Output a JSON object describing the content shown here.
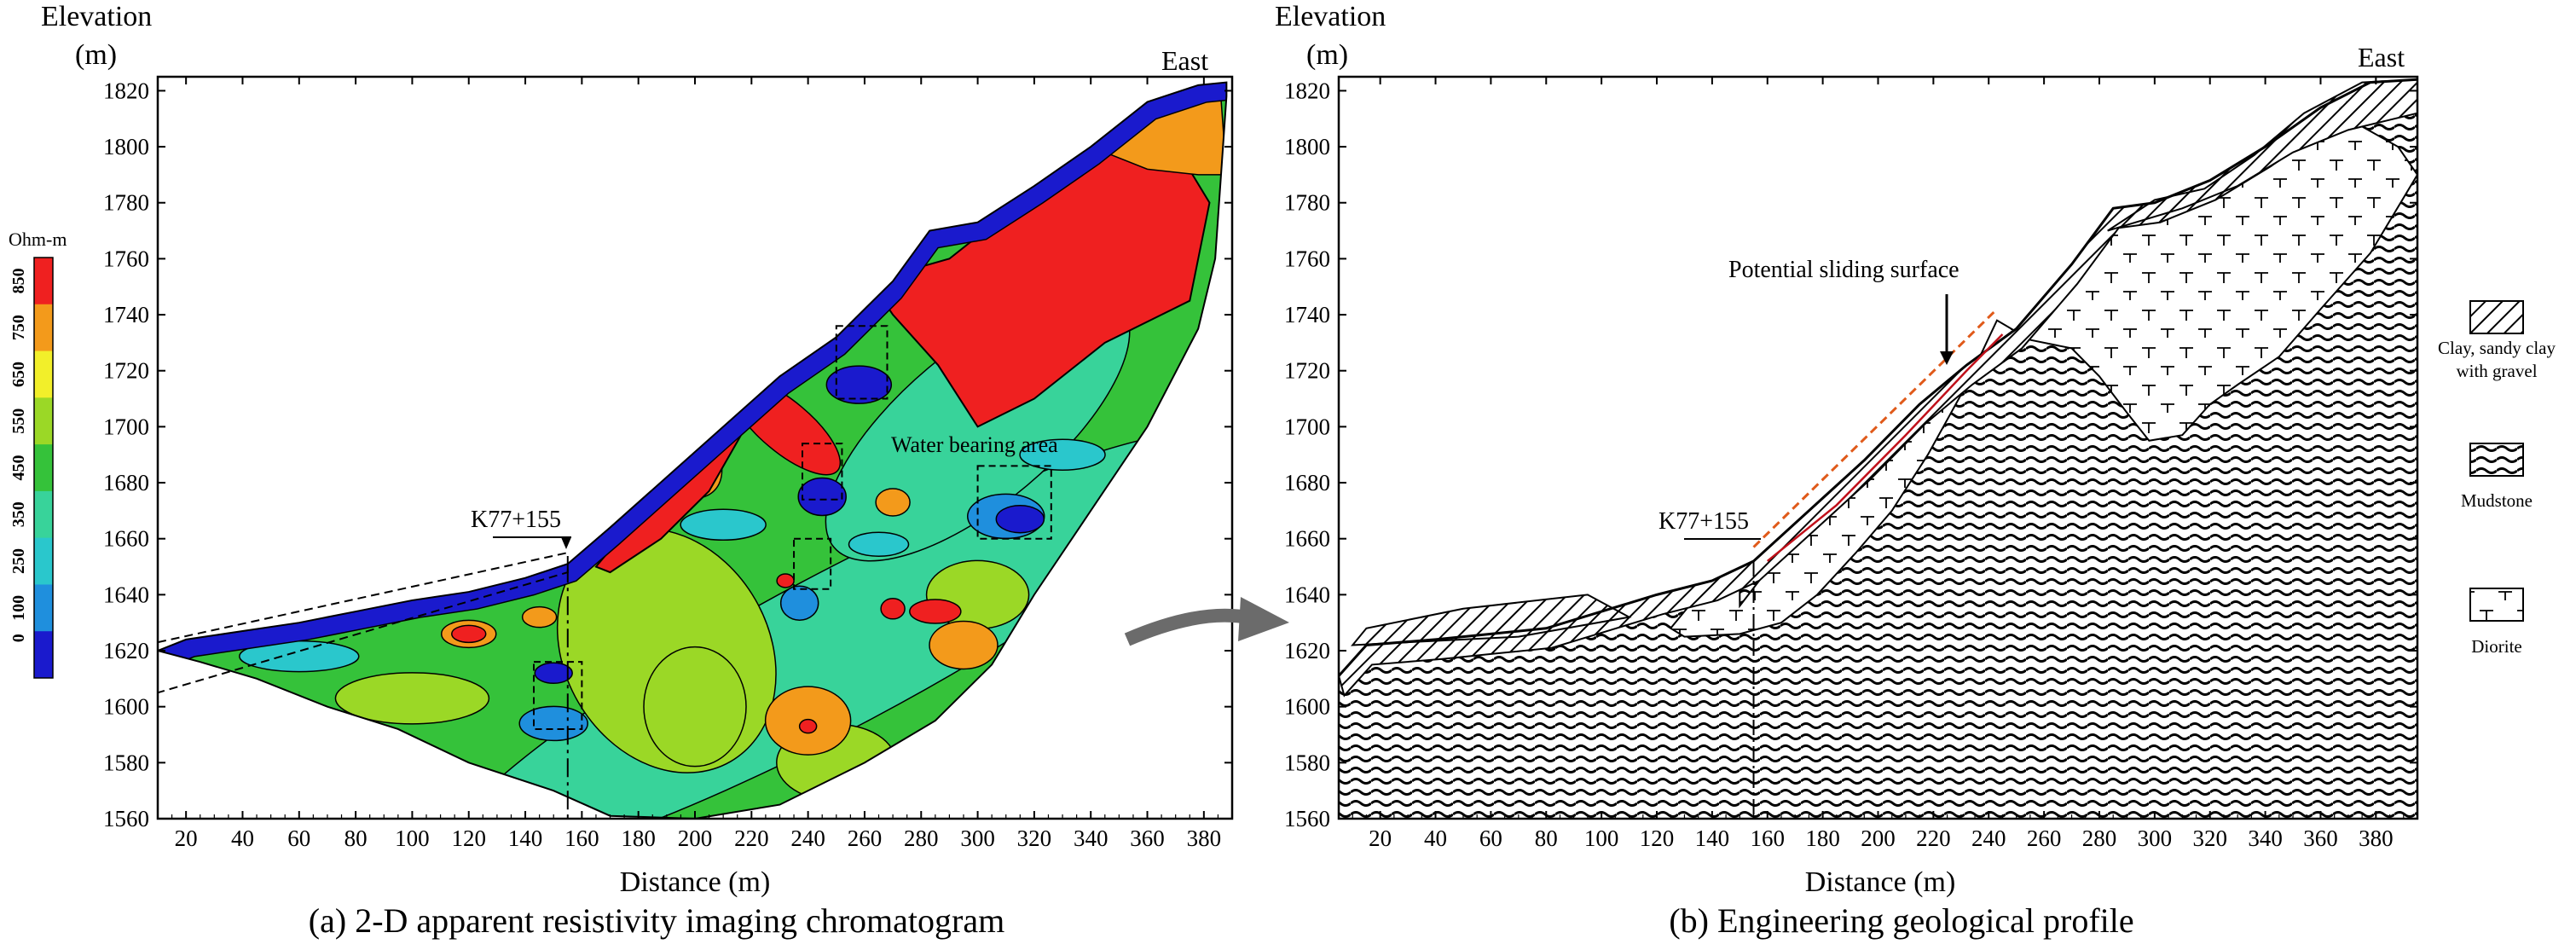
{
  "chart_data": [
    {
      "type": "heatmap",
      "panel": "a",
      "caption": "(a) 2-D apparent resistivity imaging chromatogram",
      "ylabel": [
        "Elevation",
        "(m)"
      ],
      "xlabel": "Distance (m)",
      "direction_label": "East",
      "x_ticks": [
        20,
        40,
        60,
        80,
        100,
        120,
        140,
        160,
        180,
        200,
        220,
        240,
        260,
        280,
        300,
        320,
        340,
        360,
        380
      ],
      "y_ticks": [
        1560,
        1580,
        1600,
        1620,
        1640,
        1660,
        1680,
        1700,
        1720,
        1740,
        1760,
        1780,
        1800,
        1820
      ],
      "xlim": [
        10,
        390
      ],
      "ylim": [
        1560,
        1825
      ],
      "colorbar": {
        "title": "Ohm-m",
        "ticks": [
          "0",
          "100",
          "250",
          "350",
          "450",
          "550",
          "650",
          "750",
          "850"
        ],
        "colors": [
          "#1a1acd",
          "#1f8fdd",
          "#2ac7cc",
          "#38d39a",
          "#35c23a",
          "#9bd826",
          "#f2ef2a",
          "#f39a1b",
          "#ef2020"
        ]
      },
      "surface_profile": [
        [
          10,
          1620
        ],
        [
          20,
          1624
        ],
        [
          40,
          1627
        ],
        [
          60,
          1630
        ],
        [
          80,
          1634
        ],
        [
          100,
          1638
        ],
        [
          120,
          1641
        ],
        [
          140,
          1646
        ],
        [
          155,
          1651
        ],
        [
          170,
          1664
        ],
        [
          190,
          1682
        ],
        [
          210,
          1700
        ],
        [
          230,
          1718
        ],
        [
          250,
          1732
        ],
        [
          270,
          1752
        ],
        [
          283,
          1770
        ],
        [
          300,
          1773
        ],
        [
          320,
          1786
        ],
        [
          340,
          1800
        ],
        [
          360,
          1816
        ],
        [
          378,
          1822
        ],
        [
          388,
          1823
        ]
      ],
      "annotations": [
        {
          "label": "K77+155",
          "x": 155
        },
        {
          "label": "Water bearing area"
        }
      ]
    },
    {
      "type": "diagram",
      "panel": "b",
      "caption": "(b) Engineering geological profile",
      "ylabel": [
        "Elevation",
        "(m)"
      ],
      "xlabel": "Distance (m)",
      "direction_label": "East",
      "x_ticks": [
        20,
        40,
        60,
        80,
        100,
        120,
        140,
        160,
        180,
        200,
        220,
        240,
        260,
        280,
        300,
        320,
        340,
        360,
        380
      ],
      "y_ticks": [
        1560,
        1580,
        1600,
        1620,
        1640,
        1660,
        1680,
        1700,
        1720,
        1740,
        1760,
        1780,
        1800,
        1820
      ],
      "xlim": [
        5,
        395
      ],
      "ylim": [
        1560,
        1825
      ],
      "surface_profile": [
        [
          5,
          1611
        ],
        [
          15,
          1622
        ],
        [
          40,
          1624
        ],
        [
          60,
          1626
        ],
        [
          80,
          1628
        ],
        [
          100,
          1634
        ],
        [
          120,
          1640
        ],
        [
          140,
          1645
        ],
        [
          155,
          1652
        ],
        [
          175,
          1670
        ],
        [
          195,
          1688
        ],
        [
          215,
          1708
        ],
        [
          232,
          1722
        ],
        [
          250,
          1735
        ],
        [
          270,
          1758
        ],
        [
          285,
          1778
        ],
        [
          300,
          1780
        ],
        [
          320,
          1788
        ],
        [
          340,
          1800
        ],
        [
          360,
          1814
        ],
        [
          378,
          1823
        ],
        [
          395,
          1824
        ]
      ],
      "annotations": [
        {
          "label": "K77+155",
          "x": 155
        },
        {
          "label": "Potential sliding surface"
        }
      ],
      "legend": [
        {
          "label": "Clay, sandy clay",
          "label2": "with gravel",
          "pattern": "hatch"
        },
        {
          "label": "Mudstone",
          "pattern": "wave"
        },
        {
          "label": "Diorite",
          "pattern": "diorite"
        }
      ]
    }
  ]
}
